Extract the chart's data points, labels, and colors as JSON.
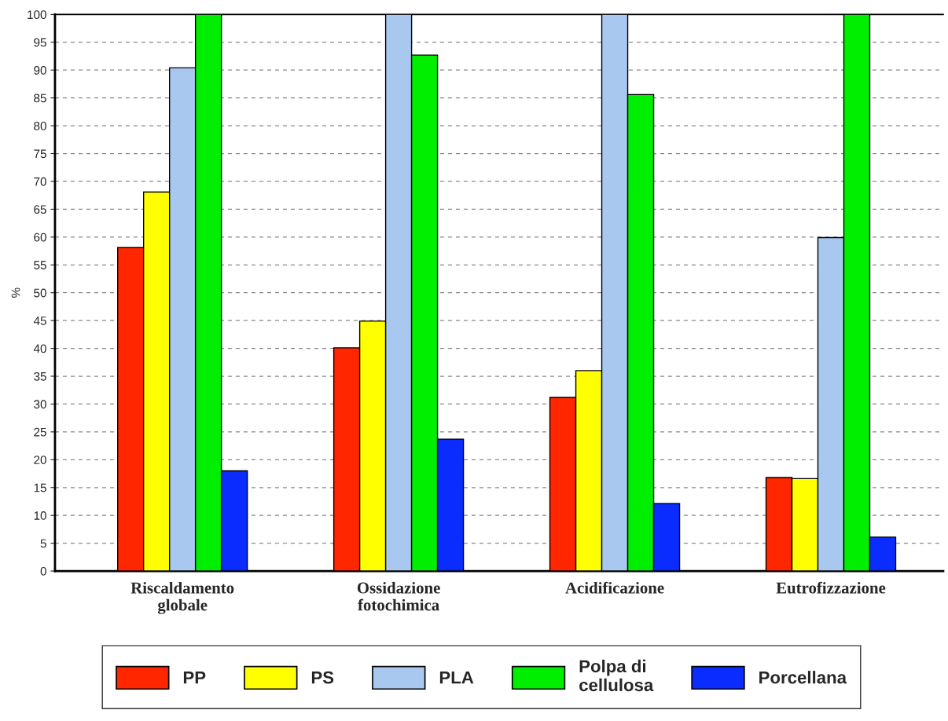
{
  "chart_data": {
    "type": "bar",
    "ylabel": "%",
    "categories": [
      "Riscaldamento globale",
      "Ossidazione fotochimica",
      "Acidificazione",
      "Eutrofizzazione"
    ],
    "series": [
      {
        "name": "PP",
        "color": "#ff2600",
        "values": [
          58.1,
          40.1,
          31.2,
          16.8
        ]
      },
      {
        "name": "PS",
        "color": "#ffff00",
        "values": [
          68.1,
          44.9,
          36.0,
          16.6
        ]
      },
      {
        "name": "PLA",
        "color": "#a9c8ef",
        "values": [
          90.4,
          100,
          100,
          59.9
        ]
      },
      {
        "name": "Polpa di cellulosa",
        "color": "#00ee00",
        "values": [
          100,
          92.7,
          85.6,
          100
        ]
      },
      {
        "name": "Porcellana",
        "color": "#0a2cff",
        "values": [
          18.0,
          23.7,
          12.1,
          6.1
        ]
      }
    ],
    "ylim": [
      0,
      100
    ],
    "yticks": [
      0,
      5,
      10,
      15,
      20,
      25,
      30,
      35,
      40,
      45,
      50,
      55,
      60,
      65,
      70,
      75,
      80,
      85,
      90,
      95,
      100
    ],
    "grid": "y",
    "legend": "bottom"
  }
}
